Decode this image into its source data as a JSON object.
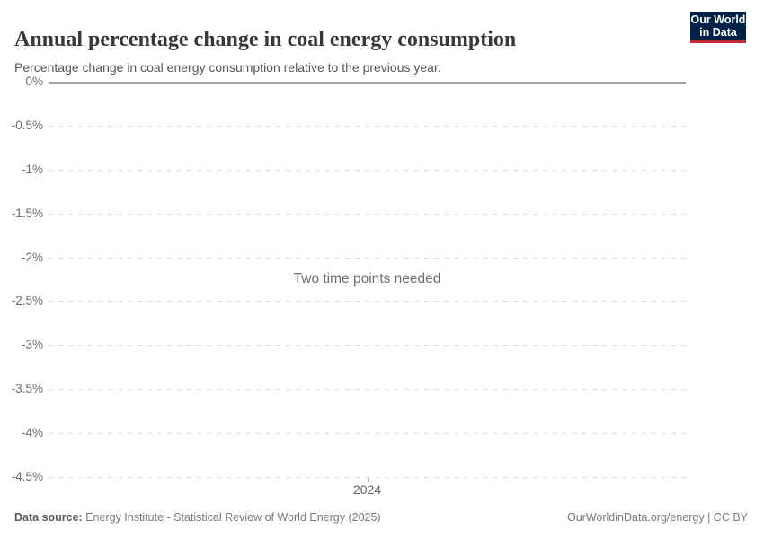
{
  "header": {
    "title": "Annual percentage change in coal energy consumption",
    "subtitle": "Percentage change in coal energy consumption relative to the previous year.",
    "logo": {
      "line1": "Our World",
      "line2": "in Data"
    }
  },
  "chart_data": {
    "type": "line",
    "title": "Annual percentage change in coal energy consumption",
    "subtitle": "Percentage change in coal energy consumption relative to the previous year.",
    "series": [],
    "values": [],
    "message": "Two time points needed",
    "x_ticks": [
      "2024"
    ],
    "y_ticks": [
      "0%",
      "-0.5%",
      "-1%",
      "-1.5%",
      "-2%",
      "-2.5%",
      "-3%",
      "-3.5%",
      "-4%",
      "-4.5%"
    ],
    "ylim": [
      -4.5,
      0
    ],
    "ylabel": "",
    "xlabel": "",
    "grid": true,
    "gridline_style": "dashed horizontal, solid line at 0%",
    "legend": "none",
    "note": "Chart is empty: only the axis frame and the message are rendered because two time points are required to compute a percentage change."
  },
  "footer": {
    "datasource_label": "Data source:",
    "datasource_value": " Energy Institute - Statistical Review of World Energy (2025)",
    "link": "OurWorldinData.org/energy | CC BY"
  },
  "colors": {
    "background": "#ffffff",
    "title_text": "#383838",
    "subtitle_text": "#555555",
    "axis_label_text": "#6b6b6b",
    "gridline_dashed": "#dedede",
    "zero_line": "#a5a5a5",
    "message_text": "#6e6e6e",
    "footer_text": "#787878",
    "logo_background": "#002147",
    "logo_accent_red": "#c7293c",
    "logo_text": "#ffffff"
  }
}
